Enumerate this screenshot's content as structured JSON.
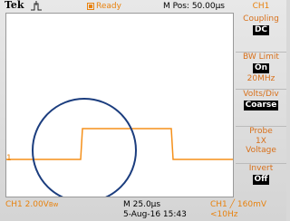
{
  "header": {
    "brand": "Tek",
    "status": "Ready",
    "position": "M Pos: 50.00µs",
    "channel": "CH1"
  },
  "menu": [
    {
      "label": "Coupling",
      "value": "DC"
    },
    {
      "label": "BW Limit",
      "value": "On",
      "lines": [
        "20MHz"
      ]
    },
    {
      "label": "Volts/Div",
      "value": "Coarse"
    },
    {
      "label": "Probe",
      "lines": [
        "1X",
        "Voltage"
      ]
    },
    {
      "label": "Invert",
      "value": "Off"
    }
  ],
  "screen": {
    "channel_marker": "1"
  },
  "footer": {
    "ch1_scale": "CH1  2.00V",
    "bw_symbol": "Bw",
    "timebase": "M 25.0µs",
    "date": "5-Aug-16 15:43",
    "trigger": "CH1 ╱ 160mV",
    "frequency": "<10Hz"
  }
}
